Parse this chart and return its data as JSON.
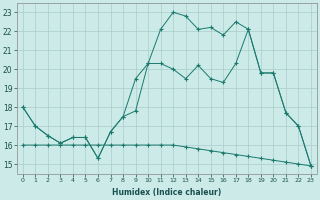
{
  "title": "",
  "xlabel": "Humidex (Indice chaleur)",
  "ylabel": "",
  "bg_color": "#cceae7",
  "grid_color": "#aacccc",
  "line_color": "#1a7a6e",
  "xlim": [
    -0.5,
    23.5
  ],
  "ylim": [
    14.5,
    23.5
  ],
  "xticks": [
    0,
    1,
    2,
    3,
    4,
    5,
    6,
    7,
    8,
    9,
    10,
    11,
    12,
    13,
    14,
    15,
    16,
    17,
    18,
    19,
    20,
    21,
    22,
    23
  ],
  "yticks": [
    15,
    16,
    17,
    18,
    19,
    20,
    21,
    22,
    23
  ],
  "line1_y": [
    18.0,
    17.0,
    16.5,
    16.1,
    16.4,
    16.4,
    15.3,
    16.7,
    17.5,
    19.5,
    20.3,
    22.1,
    23.0,
    22.8,
    22.1,
    22.2,
    21.8,
    22.5,
    22.1,
    19.8,
    19.8,
    17.7,
    17.0,
    14.9
  ],
  "line2_y": [
    18.0,
    17.0,
    16.5,
    16.1,
    16.4,
    16.4,
    15.3,
    16.7,
    17.5,
    17.8,
    20.3,
    20.3,
    20.0,
    19.5,
    20.2,
    19.5,
    19.3,
    20.3,
    22.1,
    19.8,
    19.8,
    17.7,
    17.0,
    14.9
  ],
  "line3_y": [
    16.0,
    16.0,
    16.0,
    16.0,
    16.0,
    16.0,
    16.0,
    16.0,
    16.0,
    16.0,
    16.0,
    16.0,
    16.0,
    15.9,
    15.8,
    15.7,
    15.6,
    15.5,
    15.4,
    15.3,
    15.2,
    15.1,
    15.0,
    14.9
  ]
}
